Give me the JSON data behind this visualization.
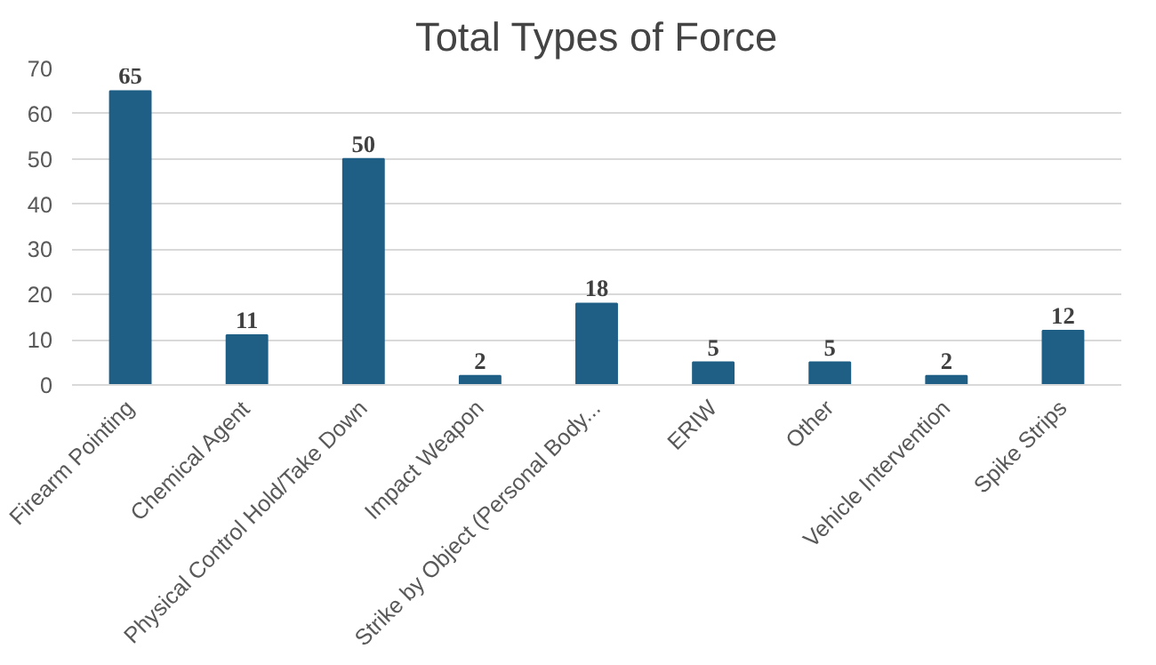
{
  "chart_data": {
    "type": "bar",
    "title": "Total Types of Force",
    "categories": [
      "Firearm Pointing",
      "Chemical Agent",
      "Physical Control Hold/Take Down",
      "Impact Weapon",
      "Strike by Object (Personal Body...",
      "ERIW",
      "Other",
      "Vehicle Intervention",
      "Spike Strips"
    ],
    "values": [
      65,
      11,
      50,
      2,
      18,
      5,
      5,
      2,
      12
    ],
    "color": "#1f5f86",
    "ylim": [
      0,
      70
    ],
    "yticks": [
      0,
      10,
      20,
      30,
      40,
      50,
      60,
      70
    ],
    "grid": "y",
    "data_labels": true
  }
}
